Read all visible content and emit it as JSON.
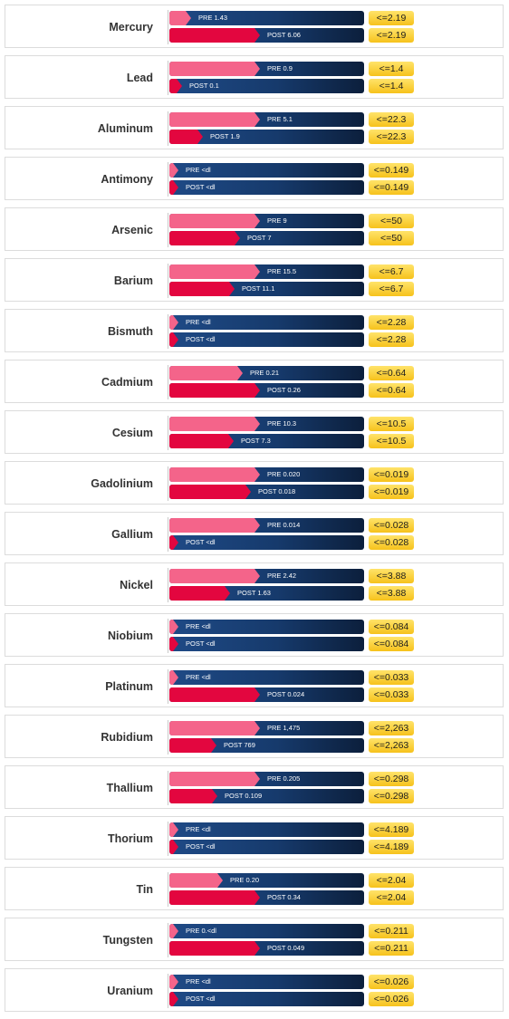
{
  "chart_data": {
    "type": "bar",
    "categories": [
      "Mercury",
      "Lead",
      "Aluminum",
      "Antimony",
      "Arsenic",
      "Barium",
      "Bismuth",
      "Cadmium",
      "Cesium",
      "Gadolinium",
      "Gallium",
      "Nickel",
      "Niobium",
      "Platinum",
      "Rubidium",
      "Thallium",
      "Thorium",
      "Tin",
      "Tungsten",
      "Uranium"
    ],
    "rows": [
      {
        "name": "Mercury",
        "pre": 1.43,
        "post": 6.06,
        "pre_label": "PRE 1.43",
        "post_label": "POST 6.06",
        "limit": 2.19,
        "limit_label": "<=2.19"
      },
      {
        "name": "Lead",
        "pre": 0.9,
        "post": 0.1,
        "pre_label": "PRE 0.9",
        "post_label": "POST 0.1",
        "limit": 1.4,
        "limit_label": "<=1.4"
      },
      {
        "name": "Aluminum",
        "pre": 5.1,
        "post": 1.9,
        "pre_label": "PRE 5.1",
        "post_label": "POST 1.9",
        "limit": 22.3,
        "limit_label": "<=22.3"
      },
      {
        "name": "Antimony",
        "pre": null,
        "post": null,
        "pre_label": "PRE <dl",
        "post_label": "POST <dl",
        "limit": 0.149,
        "limit_label": "<=0.149"
      },
      {
        "name": "Arsenic",
        "pre": 9,
        "post": 7,
        "pre_label": "PRE 9",
        "post_label": "POST 7",
        "limit": 50,
        "limit_label": "<=50"
      },
      {
        "name": "Barium",
        "pre": 15.5,
        "post": 11.1,
        "pre_label": "PRE 15.5",
        "post_label": "POST 11.1",
        "limit": 6.7,
        "limit_label": "<=6.7"
      },
      {
        "name": "Bismuth",
        "pre": null,
        "post": null,
        "pre_label": "PRE <dl",
        "post_label": "POST <dl",
        "limit": 2.28,
        "limit_label": "<=2.28"
      },
      {
        "name": "Cadmium",
        "pre": 0.21,
        "post": 0.26,
        "pre_label": "PRE 0.21",
        "post_label": "POST 0.26",
        "limit": 0.64,
        "limit_label": "<=0.64"
      },
      {
        "name": "Cesium",
        "pre": 10.3,
        "post": 7.3,
        "pre_label": "PRE 10.3",
        "post_label": "POST 7.3",
        "limit": 10.5,
        "limit_label": "<=10.5"
      },
      {
        "name": "Gadolinium",
        "pre": 0.02,
        "post": 0.018,
        "pre_label": "PRE 0.020",
        "post_label": "POST 0.018",
        "limit": 0.019,
        "limit_label": "<=0.019"
      },
      {
        "name": "Gallium",
        "pre": 0.014,
        "post": null,
        "pre_label": "PRE 0.014",
        "post_label": "POST <dl",
        "limit": 0.028,
        "limit_label": "<=0.028"
      },
      {
        "name": "Nickel",
        "pre": 2.42,
        "post": 1.63,
        "pre_label": "PRE 2.42",
        "post_label": "POST 1.63",
        "limit": 3.88,
        "limit_label": "<=3.88"
      },
      {
        "name": "Niobium",
        "pre": null,
        "post": null,
        "pre_label": "PRE <dl",
        "post_label": "POST <dl",
        "limit": 0.084,
        "limit_label": "<=0.084"
      },
      {
        "name": "Platinum",
        "pre": null,
        "post": 0.024,
        "pre_label": "PRE <dl",
        "post_label": "POST 0.024",
        "limit": 0.033,
        "limit_label": "<=0.033"
      },
      {
        "name": "Rubidium",
        "pre": 1475,
        "post": 769,
        "pre_label": "PRE 1,475",
        "post_label": "POST 769",
        "limit": 2263,
        "limit_label": "<=2,263"
      },
      {
        "name": "Thallium",
        "pre": 0.205,
        "post": 0.109,
        "pre_label": "PRE 0.205",
        "post_label": "POST 0.109",
        "limit": 0.298,
        "limit_label": "<=0.298"
      },
      {
        "name": "Thorium",
        "pre": null,
        "post": null,
        "pre_label": "PRE <dl",
        "post_label": "POST <dl",
        "limit": 4.189,
        "limit_label": "<=4.189"
      },
      {
        "name": "Tin",
        "pre": 0.2,
        "post": 0.34,
        "pre_label": "PRE 0.20",
        "post_label": "POST 0.34",
        "limit": 2.04,
        "limit_label": "<=2.04"
      },
      {
        "name": "Tungsten",
        "pre": null,
        "post": 0.049,
        "pre_label": "PRE 0.<dl",
        "post_label": "POST 0.049",
        "limit": 0.211,
        "limit_label": "<=0.211"
      },
      {
        "name": "Uranium",
        "pre": null,
        "post": null,
        "pre_label": "PRE <dl",
        "post_label": "POST <dl",
        "limit": 0.026,
        "limit_label": "<=0.026"
      }
    ],
    "colors": {
      "pre": "#f4648a",
      "post": "#e3063f",
      "track": "#163a6c",
      "limit": "#f6c21c"
    }
  }
}
